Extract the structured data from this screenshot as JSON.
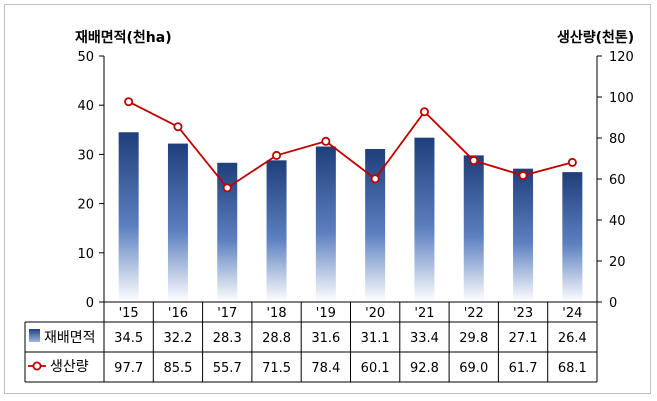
{
  "chart_data": {
    "type": "bar",
    "title": "",
    "y_left_label": "재배면적(천ha)",
    "y_right_label": "생산량(천톤)",
    "categories": [
      "'15",
      "'16",
      "'17",
      "'18",
      "'19",
      "'20",
      "'21",
      "'22",
      "'23",
      "'24"
    ],
    "y_left_ticks": [
      "0",
      "10",
      "20",
      "30",
      "40",
      "50"
    ],
    "y_right_ticks": [
      "0",
      "20",
      "40",
      "60",
      "80",
      "100",
      "120"
    ],
    "ylim_left": [
      0,
      50
    ],
    "ylim_right": [
      0,
      120
    ],
    "series": [
      {
        "name": "재배면적",
        "type": "bar",
        "axis": "left",
        "values": [
          34.5,
          32.2,
          28.3,
          28.8,
          31.6,
          31.1,
          33.4,
          29.8,
          27.1,
          26.4
        ],
        "labels": [
          "34.5",
          "32.2",
          "28.3",
          "28.8",
          "31.6",
          "31.1",
          "33.4",
          "29.8",
          "27.1",
          "26.4"
        ],
        "color": "#1f3f7a"
      },
      {
        "name": "생산량",
        "type": "line",
        "axis": "right",
        "values": [
          97.7,
          85.5,
          55.7,
          71.5,
          78.4,
          60.1,
          92.8,
          69.0,
          61.7,
          68.1
        ],
        "labels": [
          "97.7",
          "85.5",
          "55.7",
          "71.5",
          "78.4",
          "60.1",
          "92.8",
          "69.0",
          "61.7",
          "68.1"
        ],
        "color": "#c00000"
      }
    ],
    "grid": false,
    "legend": "data-table-left"
  }
}
